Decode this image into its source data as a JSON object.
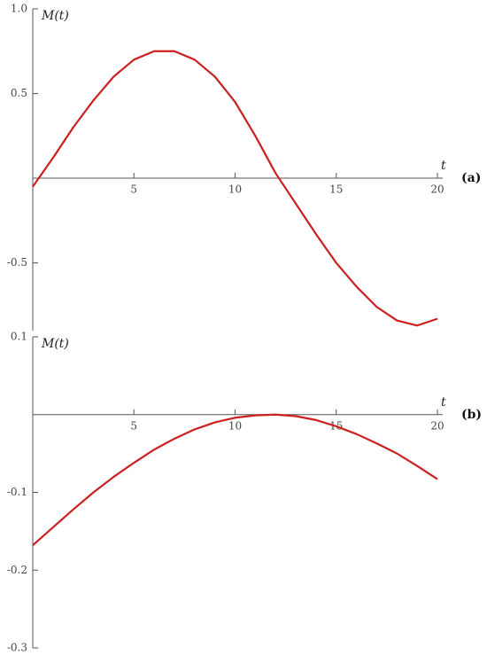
{
  "chart_data": [
    {
      "type": "line",
      "annotation": "(a)",
      "ylabel": "M(t)",
      "xlabel": "t",
      "x": [
        0,
        1,
        2,
        3,
        4,
        5,
        6,
        7,
        8,
        9,
        10,
        11,
        12,
        13,
        14,
        15,
        16,
        17,
        18,
        19,
        20
      ],
      "series": [
        {
          "color": "#cc1f1f",
          "values": [
            -0.05,
            0.12,
            0.3,
            0.46,
            0.6,
            0.7,
            0.75,
            0.75,
            0.7,
            0.6,
            0.45,
            0.25,
            0.03,
            -0.15,
            -0.33,
            -0.5,
            -0.64,
            -0.76,
            -0.84,
            -0.87,
            -0.83
          ]
        }
      ],
      "xlim": [
        0,
        20
      ],
      "xticks": [
        5,
        10,
        15,
        20
      ],
      "ylim": [
        -0.9,
        1.0
      ],
      "yticks": [
        {
          "value": 1,
          "label": "1.0"
        },
        0.5,
        -0.5
      ]
    },
    {
      "type": "line",
      "annotation": "(b)",
      "ylabel": "M(t)",
      "xlabel": "t",
      "x": [
        0,
        1,
        2,
        3,
        4,
        5,
        6,
        7,
        8,
        9,
        10,
        11,
        12,
        13,
        14,
        15,
        16,
        17,
        18,
        19,
        20
      ],
      "series": [
        {
          "color": "#cc1f1f",
          "values": [
            -0.168,
            -0.145,
            -0.122,
            -0.1,
            -0.08,
            -0.062,
            -0.045,
            -0.031,
            -0.019,
            -0.01,
            -0.004,
            -0.001,
            0.0,
            -0.002,
            -0.007,
            -0.015,
            -0.025,
            -0.037,
            -0.05,
            -0.066,
            -0.083
          ]
        }
      ],
      "xlim": [
        0,
        20
      ],
      "xticks": [
        5,
        10,
        15,
        20
      ],
      "ylim": [
        -0.3,
        0.1
      ],
      "yticks": [
        0.1,
        -0.1,
        -0.2,
        -0.3
      ]
    }
  ]
}
